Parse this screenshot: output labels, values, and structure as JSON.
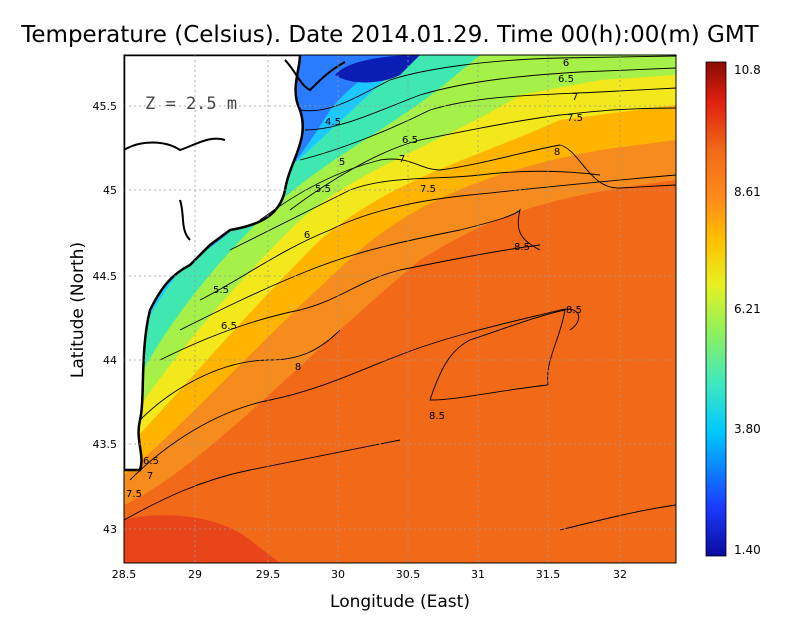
{
  "title": "Temperature (Celsius). Date 2014.01.29. Time 00(h):00(m)  GMT",
  "depth_label": "Z = 2.5 m",
  "xlabel": "Longitude (East)",
  "ylabel": "Latitude (North)",
  "x_ticks": [
    "28.5",
    "29",
    "29.5",
    "30",
    "30.5",
    "31",
    "31.5",
    "32"
  ],
  "y_ticks": [
    "43",
    "43.5",
    "44",
    "44.5",
    "45",
    "45.5"
  ],
  "colorbar": {
    "labels": [
      "10.8",
      "8.61",
      "6.21",
      "3.80",
      "1.40"
    ],
    "min": 1.4,
    "max": 10.8,
    "colors": [
      "#0a0a9e",
      "#1a3cff",
      "#00c8ff",
      "#3fe8c0",
      "#8cf060",
      "#e8f020",
      "#ffc000",
      "#ff8c1a",
      "#f26a18",
      "#e02010",
      "#8a0a00"
    ]
  },
  "contour_labels": [
    "6",
    "6.5",
    "7",
    "7.5",
    "4.5",
    "6.5",
    "7",
    "8",
    "5",
    "5.5",
    "7.5",
    "6",
    "8.5",
    "5.5",
    "8.5",
    "6.5",
    "8",
    "8.5",
    "6.5",
    "7",
    "7.5"
  ],
  "chart_data": {
    "type": "heatmap",
    "title": "Temperature (Celsius). Date 2014.01.29. Time 00(h):00(m)  GMT",
    "xlabel": "Longitude (East)",
    "ylabel": "Latitude (North)",
    "xlim": [
      28.5,
      32.4
    ],
    "ylim": [
      42.8,
      45.8
    ],
    "value_range": [
      1.4,
      10.8
    ],
    "grid": true,
    "legend": "colorbar-right",
    "contour_levels": [
      4.5,
      5,
      5.5,
      6,
      6.5,
      7,
      7.5,
      8,
      8.5
    ]
  }
}
